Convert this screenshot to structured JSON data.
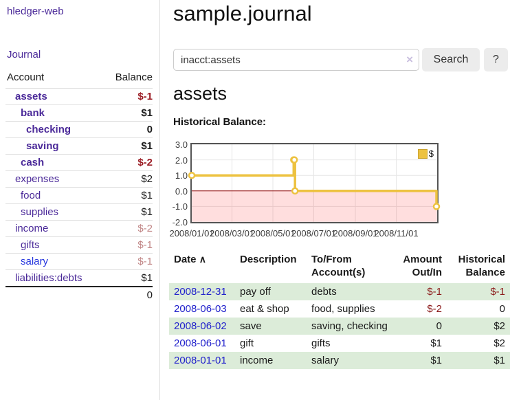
{
  "app": {
    "brand": "hledger-web"
  },
  "colors": {
    "link_purple": "#4b2a99",
    "link_blue": "#2233dd",
    "negative_strong": "#9b1c24",
    "negative_soft": "#c08585",
    "row_stripe_green": "#dcecd9",
    "series_gold": "#EDC240",
    "zero_line_red": "#8b0000",
    "below_zero_pink": "rgba(255,0,0,0.13)"
  },
  "sidebar": {
    "journal_link": "Journal",
    "accounts": {
      "header": {
        "account": "Account",
        "balance": "Balance"
      },
      "rows": [
        {
          "name": "assets",
          "balance": "$-1"
        },
        {
          "name": "bank",
          "balance": "$1"
        },
        {
          "name": "checking",
          "balance": "0"
        },
        {
          "name": "saving",
          "balance": "$1"
        },
        {
          "name": "cash",
          "balance": "$-2"
        },
        {
          "name": "expenses",
          "balance": "$2"
        },
        {
          "name": "food",
          "balance": "$1"
        },
        {
          "name": "supplies",
          "balance": "$1"
        },
        {
          "name": "income",
          "balance": "$-2"
        },
        {
          "name": "gifts",
          "balance": "$-1"
        },
        {
          "name": "salary",
          "balance": "$-1"
        },
        {
          "name": "liabilities:debts",
          "balance": "$1"
        }
      ],
      "total": "0"
    }
  },
  "main": {
    "title": "sample.journal",
    "search": {
      "value": "inacct:assets",
      "clear_icon_glyph": "×",
      "button_label": "Search",
      "help_label": "?"
    },
    "heading": "assets",
    "chart_title": "Historical Balance:"
  },
  "chart_data": {
    "type": "line",
    "style": "step",
    "title": "Historical Balance",
    "xlim": [
      "2008-01-01",
      "2009-01-01"
    ],
    "ylim": [
      -2,
      3
    ],
    "grid": true,
    "legend_position": "top-right",
    "y_ticks": [
      {
        "value": 3,
        "label": "3.0"
      },
      {
        "value": 2,
        "label": "2.0"
      },
      {
        "value": 1,
        "label": "1.0"
      },
      {
        "value": 0,
        "label": "0.0"
      },
      {
        "value": -1,
        "label": "-1.0"
      },
      {
        "value": -2,
        "label": "-2.0"
      }
    ],
    "x_ticks": [
      {
        "date": "2008-01-01",
        "label": "2008/01/01"
      },
      {
        "date": "2008-03-01",
        "label": "2008/03/01"
      },
      {
        "date": "2008-05-01",
        "label": "2008/05/01"
      },
      {
        "date": "2008-07-01",
        "label": "2008/07/01"
      },
      {
        "date": "2008-09-01",
        "label": "2008/09/01"
      },
      {
        "date": "2008-11-01",
        "label": "2008/11/01"
      }
    ],
    "series": [
      {
        "name": "$",
        "color": "#EDC240",
        "points": [
          {
            "date": "2008-01-01",
            "value": 1
          },
          {
            "date": "2008-06-01",
            "value": 2
          },
          {
            "date": "2008-06-02",
            "value": 2
          },
          {
            "date": "2008-06-03",
            "value": 0
          },
          {
            "date": "2008-12-31",
            "value": -1
          }
        ]
      }
    ],
    "markings": {
      "below_zero_fill": "rgba(255,0,0,0.13)",
      "zero_line_color": "#8b0000"
    }
  },
  "transactions": {
    "headers": {
      "date": "Date",
      "sort_icon_glyph": "∧",
      "description": "Description",
      "accounts": "To/From Account(s)",
      "amount": "Amount Out/In",
      "balance": "Historical Balance"
    },
    "rows": [
      {
        "date": "2008-12-31",
        "description": "pay off",
        "accounts": "debts",
        "amount": "$-1",
        "balance": "$-1"
      },
      {
        "date": "2008-06-03",
        "description": "eat & shop",
        "accounts": "food, supplies",
        "amount": "$-2",
        "balance": "0"
      },
      {
        "date": "2008-06-02",
        "description": "save",
        "accounts": "saving, checking",
        "amount": "0",
        "balance": "$2"
      },
      {
        "date": "2008-06-01",
        "description": "gift",
        "accounts": "gifts",
        "amount": "$1",
        "balance": "$2"
      },
      {
        "date": "2008-01-01",
        "description": "income",
        "accounts": "salary",
        "amount": "$1",
        "balance": "$1"
      }
    ]
  }
}
